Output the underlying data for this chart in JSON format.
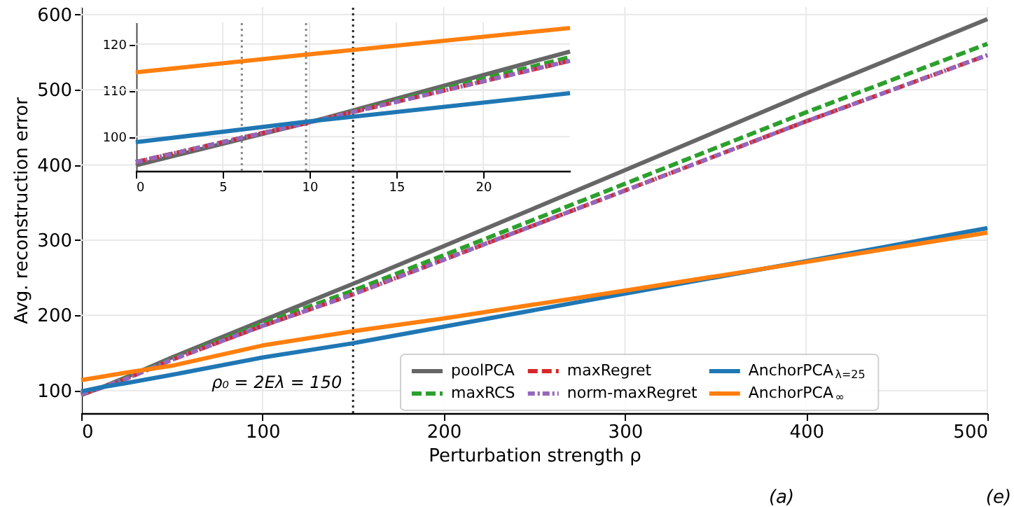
{
  "chart_data": [
    {
      "type": "line",
      "xlabel": "Perturbation strength ρ",
      "ylabel": "Avg. reconstruction error",
      "x": [
        0,
        10,
        25,
        50,
        100,
        150,
        200,
        300,
        400,
        500
      ],
      "series": [
        {
          "name": "poolPCA",
          "color": "#666666",
          "line_style": "solid",
          "values": [
            94,
            103,
            118,
            144,
            193,
            242,
            292,
            393,
            495,
            594
          ]
        },
        {
          "name": "maxRCS",
          "color": "#2ca02c",
          "line_style": "dashed",
          "values": [
            95,
            103,
            117,
            142,
            189,
            233,
            280,
            375,
            470,
            561
          ]
        },
        {
          "name": "maxRegret",
          "color": "#d62728",
          "line_style": "dashed",
          "values": [
            95,
            103,
            116,
            141,
            186,
            228,
            274,
            366,
            458,
            546
          ]
        },
        {
          "name": "norm-maxRegret",
          "color": "#9467bd",
          "line_style": "dashed",
          "values": [
            95,
            103,
            116,
            141,
            186,
            228,
            274,
            366,
            458,
            546
          ]
        },
        {
          "name": "AnchorPCA$_{λ=25}$",
          "color": "#1f77b4",
          "line_style": "solid",
          "values": [
            99,
            104,
            110,
            121,
            144,
            163,
            185,
            229,
            272,
            316
          ]
        },
        {
          "name": "AnchorPCA$_{∞}$",
          "color": "#ff7f0e",
          "line_style": "solid",
          "values": [
            114,
            118,
            124,
            133,
            160,
            179,
            196,
            233,
            271,
            310
          ]
        }
      ],
      "xlim": [
        0,
        500
      ],
      "xticks": [
        0,
        100,
        200,
        300,
        400,
        500
      ],
      "ylim": [
        70,
        610
      ],
      "yticks": [
        100,
        200,
        300,
        400,
        500,
        600
      ],
      "ref_lines": [
        {
          "axis": "x",
          "value": 150,
          "label": "ρ₀ = 2Eλ = 150",
          "color": "#222222",
          "line_style": "dotted"
        }
      ],
      "grid": true,
      "legend": "bottom right",
      "annotations": [
        "(a)",
        "(e)"
      ]
    },
    {
      "type": "line",
      "x": [
        0,
        10,
        25
      ],
      "series": [
        {
          "color": "#666666",
          "line_style": "solid",
          "values": [
            93.8,
            103.1,
            118.4
          ]
        },
        {
          "color": "#2ca02c",
          "line_style": "dashed",
          "values": [
            94.5,
            103.1,
            117.2
          ]
        },
        {
          "color": "#d62728",
          "line_style": "dashed",
          "values": [
            94.5,
            103.1,
            116.4
          ]
        },
        {
          "color": "#9467bd",
          "line_style": "dashed",
          "values": [
            94.5,
            103.1,
            116.4
          ]
        },
        {
          "color": "#1f77b4",
          "line_style": "solid",
          "values": [
            98.8,
            103.3,
            109.4
          ]
        },
        {
          "color": "#ff7f0e",
          "line_style": "solid",
          "values": [
            113.9,
            117.8,
            123.5
          ]
        }
      ],
      "xlim": [
        0,
        25
      ],
      "xticks": [
        0,
        5,
        10,
        15,
        20
      ],
      "ylim": [
        92.6,
        124.7
      ],
      "yticks": [
        100,
        110,
        120
      ],
      "ref_lines": [
        {
          "axis": "x",
          "value": 6.1,
          "color": "#888888",
          "line_style": "dotted"
        },
        {
          "axis": "x",
          "value": 9.8,
          "color": "#888888",
          "line_style": "dotted"
        }
      ],
      "grid": true
    }
  ]
}
